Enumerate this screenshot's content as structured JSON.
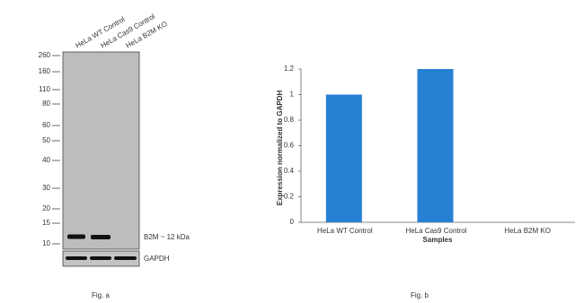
{
  "blot": {
    "lanes": [
      "HeLa WT Control",
      "HeLa Cas9 Control",
      "HeLa B2M KO"
    ],
    "markers": [
      260,
      160,
      110,
      80,
      60,
      50,
      40,
      30,
      20,
      15,
      10
    ],
    "band_label": "B2M ~ 12 kDa",
    "loading_label": "GAPDH",
    "caption": "Fig. a"
  },
  "chart_data": {
    "type": "bar",
    "caption": "Fig. b",
    "categories": [
      "HeLa WT Control",
      "HeLa Cas9 Control",
      "HeLa B2M KO"
    ],
    "values": [
      1,
      1.2,
      0
    ],
    "color": "#2680d4",
    "xlabel": "Samples",
    "ylabel": "Expression  normalized to GAPDH",
    "ylim": [
      0,
      1.2
    ],
    "yticks": [
      0,
      0.2,
      0.4,
      0.6,
      0.8,
      1,
      1.2
    ],
    "grid": false
  }
}
